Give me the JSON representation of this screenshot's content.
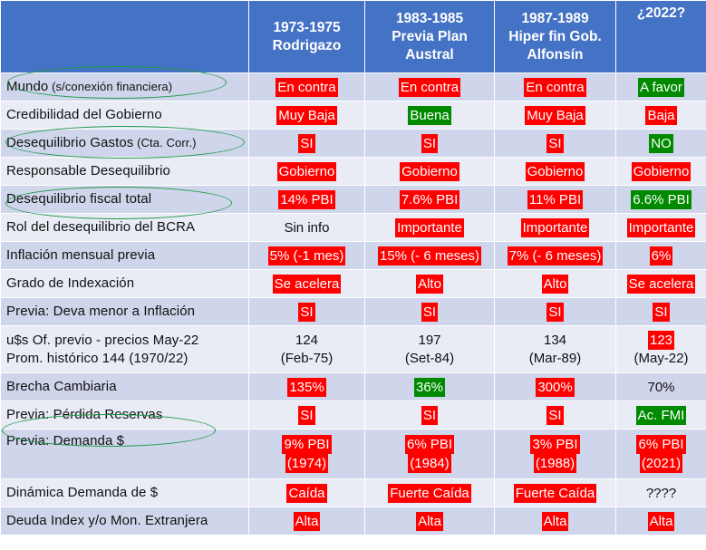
{
  "headers": [
    {
      "line1": "1973-1975",
      "line2": "Rodrigazo",
      "line3": ""
    },
    {
      "line1": "1983-1985",
      "line2": "Previa Plan",
      "line3": "Austral"
    },
    {
      "line1": "1987-1989",
      "line2": "Hiper fin Gob.",
      "line3": "Alfonsín"
    },
    {
      "line1": "¿2022?",
      "line2": "",
      "line3": ""
    }
  ],
  "rows": [
    {
      "label": "Mundo",
      "label_small": " (s/conexión financiera)",
      "cells": [
        {
          "t": "En contra",
          "c": "red"
        },
        {
          "t": "En contra",
          "c": "red"
        },
        {
          "t": "En contra",
          "c": "red"
        },
        {
          "t": "A favor",
          "c": "green"
        }
      ]
    },
    {
      "label": "Credibilidad del Gobierno",
      "label_small": "",
      "cells": [
        {
          "t": "Muy Baja",
          "c": "red"
        },
        {
          "t": "Buena",
          "c": "green"
        },
        {
          "t": "Muy Baja",
          "c": "red"
        },
        {
          "t": "Baja",
          "c": "red"
        }
      ]
    },
    {
      "label": "Desequilibrio Gastos",
      "label_small": " (Cta. Corr.)",
      "cells": [
        {
          "t": "SI",
          "c": "red"
        },
        {
          "t": "SI",
          "c": "red"
        },
        {
          "t": "SI",
          "c": "red"
        },
        {
          "t": "NO",
          "c": "green"
        }
      ]
    },
    {
      "label": "Responsable Desequilibrio",
      "label_small": "",
      "cells": [
        {
          "t": "Gobierno",
          "c": "red"
        },
        {
          "t": "Gobierno",
          "c": "red"
        },
        {
          "t": "Gobierno",
          "c": "red"
        },
        {
          "t": "Gobierno",
          "c": "red"
        }
      ]
    },
    {
      "label": "Desequilibrio fiscal total",
      "label_small": "",
      "cells": [
        {
          "t": "14% PBI",
          "c": "red"
        },
        {
          "t": "7.6% PBI",
          "c": "red"
        },
        {
          "t": "11% PBI",
          "c": "red"
        },
        {
          "t": "6.6% PBI",
          "c": "green"
        }
      ]
    },
    {
      "label": "Rol del desequilibrio del BCRA",
      "label_small": "",
      "cells": [
        {
          "t": "Sin info",
          "c": "plain"
        },
        {
          "t": "Importante",
          "c": "red"
        },
        {
          "t": "Importante",
          "c": "red"
        },
        {
          "t": "Importante",
          "c": "red"
        }
      ]
    },
    {
      "label": "Inflación mensual previa",
      "label_small": "",
      "cells": [
        {
          "t": "5% (-1 mes)",
          "c": "red"
        },
        {
          "t": "15% (- 6 meses)",
          "c": "red"
        },
        {
          "t": "7% (- 6 meses)",
          "c": "red"
        },
        {
          "t": "6%",
          "c": "red"
        }
      ]
    },
    {
      "label": "Grado de Indexación",
      "label_small": "",
      "cells": [
        {
          "t": "Se acelera",
          "c": "red"
        },
        {
          "t": "Alto",
          "c": "red"
        },
        {
          "t": "Alto",
          "c": "red"
        },
        {
          "t": "Se acelera",
          "c": "red"
        }
      ]
    },
    {
      "label": "Previa: Deva menor a Inflación",
      "label_small": "",
      "cells": [
        {
          "t": "SI",
          "c": "red"
        },
        {
          "t": "SI",
          "c": "red"
        },
        {
          "t": "SI",
          "c": "red"
        },
        {
          "t": "SI",
          "c": "red"
        }
      ]
    },
    {
      "label": "u$s Of. previo - precios May-22",
      "label2": "Prom. histórico 144 (1970/22)",
      "cells2": [
        {
          "a": "124",
          "ac": "plain",
          "b": "(Feb-75)"
        },
        {
          "a": "197",
          "ac": "plain",
          "b": "(Set-84)"
        },
        {
          "a": "134",
          "ac": "plain",
          "b": "(Mar-89)"
        },
        {
          "a": "123",
          "ac": "red",
          "b": "(May-22)"
        }
      ]
    },
    {
      "label": "Brecha Cambiaria",
      "label_small": "",
      "cells": [
        {
          "t": "135%",
          "c": "red"
        },
        {
          "t": "36%",
          "c": "green"
        },
        {
          "t": "300%",
          "c": "red"
        },
        {
          "t": "70%",
          "c": "plain"
        }
      ]
    },
    {
      "label": "Previa: Pérdida Reservas",
      "label_small": "",
      "cells": [
        {
          "t": "SI",
          "c": "red"
        },
        {
          "t": "SI",
          "c": "red"
        },
        {
          "t": "SI",
          "c": "red"
        },
        {
          "t": "Ac. FMI",
          "c": "green"
        }
      ]
    },
    {
      "label": "Previa: Demanda $",
      "label2": "",
      "cells3": [
        {
          "a": "9% PBI",
          "b": "(1974)"
        },
        {
          "a": "6% PBI",
          "b": "(1984)"
        },
        {
          "a": "3% PBI",
          "b": "(1988)"
        },
        {
          "a": "6% PBI",
          "b": "(2021)"
        }
      ]
    },
    {
      "label": "Dinámica Demanda de $",
      "label_small": "",
      "cells": [
        {
          "t": "Caída",
          "c": "red"
        },
        {
          "t": "Fuerte Caída",
          "c": "red"
        },
        {
          "t": "Fuerte Caída",
          "c": "red"
        },
        {
          "t": "????",
          "c": "plain"
        }
      ]
    },
    {
      "label": "Deuda Index y/o Mon. Extranjera",
      "label_small": "",
      "cells": [
        {
          "t": "Alta",
          "c": "red"
        },
        {
          "t": "Alta",
          "c": "red"
        },
        {
          "t": "Alta",
          "c": "red"
        },
        {
          "t": "Alta",
          "c": "red"
        }
      ]
    }
  ],
  "colors": {
    "header": "#4472c4",
    "row_dark": "#cfd5ea",
    "row_light": "#e9ebf5",
    "bad": "#ff0000",
    "good": "#008a00",
    "highlight_ellipse": "#1f9a49"
  }
}
